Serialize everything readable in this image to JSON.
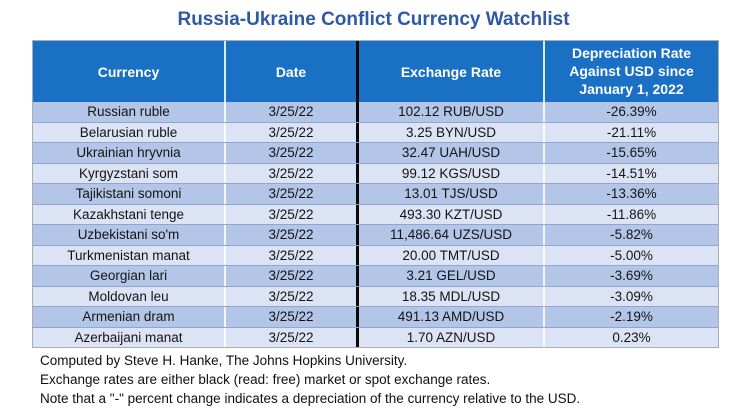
{
  "title": "Russia-Ukraine Conflict Currency Watchlist",
  "colors": {
    "title_text": "#3059a4",
    "header_bg": "#1a70c4",
    "header_text": "#ffffff",
    "row_odd_bg": "#b3c6e8",
    "row_even_bg": "#dbe3f5",
    "column_divider_black": "#0b0b0b"
  },
  "table": {
    "headers": [
      "Currency",
      "Date",
      "Exchange Rate",
      "Depreciation Rate\nAgainst USD since\nJanuary 1, 2022"
    ],
    "rows": [
      {
        "currency": "Russian ruble",
        "date": "3/25/22",
        "rate": "102.12 RUB/USD",
        "depreciation": "-26.39%"
      },
      {
        "currency": "Belarusian ruble",
        "date": "3/25/22",
        "rate": "3.25 BYN/USD",
        "depreciation": "-21.11%"
      },
      {
        "currency": "Ukrainian hryvnia",
        "date": "3/25/22",
        "rate": "32.47 UAH/USD",
        "depreciation": "-15.65%"
      },
      {
        "currency": "Kyrgyzstani som",
        "date": "3/25/22",
        "rate": "99.12 KGS/USD",
        "depreciation": "-14.51%"
      },
      {
        "currency": "Tajikistani somoni",
        "date": "3/25/22",
        "rate": "13.01 TJS/USD",
        "depreciation": "-13.36%"
      },
      {
        "currency": "Kazakhstani tenge",
        "date": "3/25/22",
        "rate": "493.30 KZT/USD",
        "depreciation": "-11.86%"
      },
      {
        "currency": "Uzbekistani so'm",
        "date": "3/25/22",
        "rate": "11,486.64 UZS/USD",
        "depreciation": "-5.82%"
      },
      {
        "currency": "Turkmenistan manat",
        "date": "3/25/22",
        "rate": "20.00 TMT/USD",
        "depreciation": "-5.00%"
      },
      {
        "currency": "Georgian lari",
        "date": "3/25/22",
        "rate": "3.21 GEL/USD",
        "depreciation": "-3.69%"
      },
      {
        "currency": "Moldovan leu",
        "date": "3/25/22",
        "rate": "18.35 MDL/USD",
        "depreciation": "-3.09%"
      },
      {
        "currency": "Armenian dram",
        "date": "3/25/22",
        "rate": "491.13 AMD/USD",
        "depreciation": "-2.19%"
      },
      {
        "currency": "Azerbaijani manat",
        "date": "3/25/22",
        "rate": "1.70 AZN/USD",
        "depreciation": "0.23%"
      }
    ]
  },
  "notes": [
    "Computed by Steve H. Hanke, The Johns Hopkins University.",
    "Exchange rates are either black (read: free) market or spot exchange rates.",
    "Note that a \"-\" percent change indicates a depreciation of the currency relative to the USD."
  ],
  "chart_data": {
    "type": "table",
    "title": "Russia-Ukraine Conflict Currency Watchlist",
    "columns": [
      "Currency",
      "Date",
      "Exchange Rate",
      "Depreciation Rate Against USD since January 1, 2022"
    ],
    "rows": [
      [
        "Russian ruble",
        "3/25/22",
        "102.12 RUB/USD",
        "-26.39%"
      ],
      [
        "Belarusian ruble",
        "3/25/22",
        "3.25 BYN/USD",
        "-21.11%"
      ],
      [
        "Ukrainian hryvnia",
        "3/25/22",
        "32.47 UAH/USD",
        "-15.65%"
      ],
      [
        "Kyrgyzstani som",
        "3/25/22",
        "99.12 KGS/USD",
        "-14.51%"
      ],
      [
        "Tajikistani somoni",
        "3/25/22",
        "13.01 TJS/USD",
        "-13.36%"
      ],
      [
        "Kazakhstani tenge",
        "3/25/22",
        "493.30 KZT/USD",
        "-11.86%"
      ],
      [
        "Uzbekistani so'm",
        "3/25/22",
        "11,486.64 UZS/USD",
        "-5.82%"
      ],
      [
        "Turkmenistan manat",
        "3/25/22",
        "20.00 TMT/USD",
        "-5.00%"
      ],
      [
        "Georgian lari",
        "3/25/22",
        "3.21 GEL/USD",
        "-3.69%"
      ],
      [
        "Moldovan leu",
        "3/25/22",
        "18.35 MDL/USD",
        "-3.09%"
      ],
      [
        "Armenian dram",
        "3/25/22",
        "491.13 AMD/USD",
        "-2.19%"
      ],
      [
        "Azerbaijani manat",
        "3/25/22",
        "1.70 AZN/USD",
        "0.23%"
      ]
    ],
    "depreciation_values_pct": [
      -26.39,
      -21.11,
      -15.65,
      -14.51,
      -13.36,
      -11.86,
      -5.82,
      -5.0,
      -3.69,
      -3.09,
      -2.19,
      0.23
    ]
  }
}
